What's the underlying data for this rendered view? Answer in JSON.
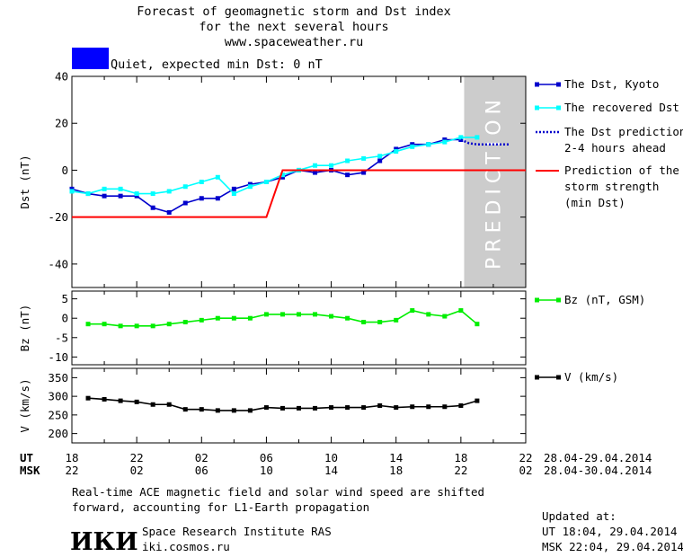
{
  "header": {
    "title_line1": "Forecast of geomagnetic storm and Dst index",
    "title_line2": "for the next several hours",
    "url": "www.spaceweather.ru",
    "status_text": "Quiet, expected min Dst: 0 nT",
    "status_color": "#0000ff"
  },
  "prediction_band_text": "PREDICTION",
  "footer": {
    "note_line1": "Real-time ACE magnetic field and solar wind speed are shifted",
    "note_line2": "forward, accounting for L1-Earth propagation",
    "institute": "Space Research Institute RAS",
    "site": "iki.cosmos.ru",
    "logo_text": "ИКИ",
    "updated_label": "Updated at:",
    "updated_ut": "UT   18:04, 29.04.2014",
    "updated_msk": "MSK 22:04, 29.04.2014"
  },
  "time_axis": {
    "ut_label": "UT",
    "msk_label": "MSK",
    "ut_ticks": [
      "18",
      "22",
      "02",
      "06",
      "10",
      "14",
      "18",
      "22"
    ],
    "msk_ticks": [
      "22",
      "02",
      "06",
      "10",
      "14",
      "18",
      "22",
      "02"
    ],
    "ut_range": "28.04-29.04.2014",
    "msk_range": "28.04-30.04.2014"
  },
  "chart_data": [
    {
      "type": "line",
      "id": "dst",
      "ylabel": "Dst (nT)",
      "xlim": [
        0,
        28
      ],
      "ylim": [
        -50,
        40
      ],
      "yticks": [
        40,
        20,
        0,
        -20,
        -40
      ],
      "prediction_region": [
        24.2,
        28
      ],
      "series": [
        {
          "name": "The Dst, Kyoto",
          "color": "#0000cc",
          "marker": "square",
          "x": [
            0,
            1,
            2,
            3,
            4,
            5,
            6,
            7,
            8,
            9,
            10,
            11,
            12,
            13,
            14,
            15,
            16,
            17,
            18,
            19,
            20,
            21,
            22,
            23,
            24
          ],
          "y": [
            -8,
            -10,
            -11,
            -11,
            -11,
            -16,
            -18,
            -14,
            -12,
            -12,
            -8,
            -6,
            -5,
            -3,
            0,
            -1,
            0,
            -2,
            -1,
            4,
            9,
            11,
            11,
            13,
            13
          ]
        },
        {
          "name": "The recovered Dst",
          "color": "#00ffff",
          "marker": "square",
          "x": [
            0,
            1,
            2,
            3,
            4,
            5,
            6,
            7,
            8,
            9,
            10,
            11,
            12,
            13,
            14,
            15,
            16,
            17,
            18,
            19,
            20,
            21,
            22,
            23,
            24,
            25
          ],
          "y": [
            -9,
            -10,
            -8,
            -8,
            -10,
            -10,
            -9,
            -7,
            -5,
            -3,
            -10,
            -7,
            -5,
            -2,
            0,
            2,
            2,
            4,
            5,
            6,
            8,
            10,
            11,
            12,
            14,
            14
          ]
        },
        {
          "name": "The Dst prediction\n2-4 hours ahead",
          "color": "#0000cc",
          "dash": "dotted",
          "x": [
            24,
            24.5,
            25,
            26,
            27
          ],
          "y": [
            13,
            11.5,
            11,
            11,
            11
          ]
        },
        {
          "name": "Prediction of the\nstorm strength\n(min Dst)",
          "color": "#ff0000",
          "x": [
            0,
            12,
            13,
            28
          ],
          "y": [
            -20,
            -20,
            0,
            0
          ]
        }
      ]
    },
    {
      "type": "line",
      "id": "bz",
      "ylabel": "Bz (nT)",
      "xlim": [
        0,
        28
      ],
      "ylim": [
        -12,
        7
      ],
      "yticks": [
        5,
        0,
        -5,
        -10
      ],
      "series": [
        {
          "name": "Bz (nT, GSM)",
          "color": "#00ee00",
          "marker": "square",
          "x": [
            1,
            2,
            3,
            4,
            5,
            6,
            7,
            8,
            9,
            10,
            11,
            12,
            13,
            14,
            15,
            16,
            17,
            18,
            19,
            20,
            21,
            22,
            23,
            24,
            25
          ],
          "y": [
            -1.5,
            -1.5,
            -2,
            -2,
            -2,
            -1.5,
            -1,
            -0.5,
            0,
            0,
            0,
            1,
            1,
            1,
            1,
            0.5,
            0,
            -1,
            -1,
            -0.5,
            2,
            1,
            0.5,
            2,
            -1.5
          ]
        }
      ]
    },
    {
      "type": "line",
      "id": "v",
      "ylabel": "V (km/s)",
      "xlim": [
        0,
        28
      ],
      "ylim": [
        175,
        375
      ],
      "yticks": [
        350,
        300,
        250,
        200
      ],
      "series": [
        {
          "name": "V (km/s)",
          "color": "#000000",
          "marker": "square",
          "x": [
            1,
            2,
            3,
            4,
            5,
            6,
            7,
            8,
            9,
            10,
            11,
            12,
            13,
            14,
            15,
            16,
            17,
            18,
            19,
            20,
            21,
            22,
            23,
            24,
            25
          ],
          "y": [
            295,
            292,
            288,
            285,
            278,
            278,
            265,
            265,
            262,
            262,
            262,
            270,
            268,
            268,
            268,
            270,
            270,
            270,
            275,
            270,
            272,
            272,
            272,
            275,
            288
          ]
        }
      ]
    }
  ]
}
